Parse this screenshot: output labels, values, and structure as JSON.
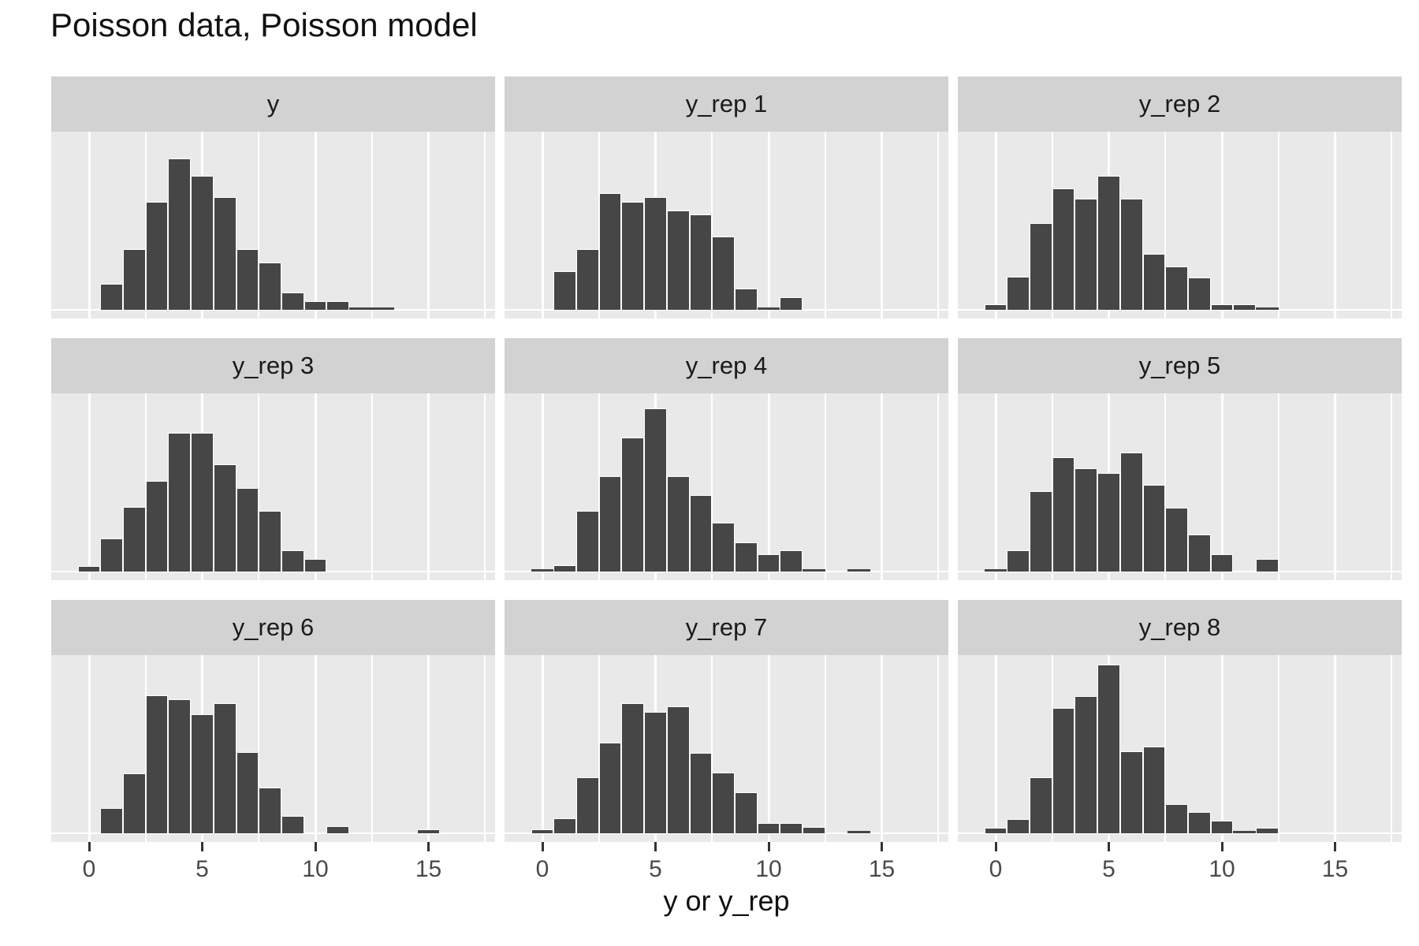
{
  "title": "Poisson data, Poisson model",
  "x_axis": {
    "label": "y or y_rep",
    "tick_labels": [
      "0",
      "5",
      "10",
      "15"
    ],
    "tick_values": [
      0,
      5,
      10,
      15
    ]
  },
  "colors": {
    "bar_fill": "#464646",
    "bar_stroke": "#ffffff",
    "panel_bg": "#e9e9e9",
    "strip_bg": "#d2d2d2",
    "gridline": "#ffffff",
    "tick_label": "#4a4a4a",
    "text": "#111111"
  },
  "chart_data": {
    "type": "bar",
    "subtype": "faceted-histograms",
    "title": "Poisson data, Poisson model",
    "xlabel": "y or y_rep",
    "ylabel": "",
    "legend": "none",
    "grid": "white-on-gray",
    "x_ticks": [
      0,
      5,
      10,
      15
    ],
    "x_minor_gridlines": [
      2.5,
      7.5,
      12.5,
      17.5
    ],
    "x_range": [
      -1.7,
      17.9
    ],
    "y_shared_scale": true,
    "y_max_count": 19.5,
    "facet_grid": [
      3,
      3
    ],
    "facets": [
      {
        "label": "y",
        "x_start": 1,
        "counts": [
          3,
          7,
          12.5,
          17.5,
          15.5,
          13,
          7,
          5.5,
          2,
          1,
          1,
          0.2,
          0.2
        ]
      },
      {
        "label": "y_rep 1",
        "x_start": 1,
        "counts": [
          4.5,
          7,
          13.5,
          12.5,
          13,
          11.5,
          11,
          8.5,
          2.5,
          0.2,
          1.5
        ]
      },
      {
        "label": "y_rep 2",
        "x_start": 0,
        "counts": [
          0.6,
          3.8,
          10,
          14,
          12.8,
          15.5,
          12.8,
          6.5,
          5,
          3.7,
          0.6,
          0.6,
          0.2
        ]
      },
      {
        "label": "y_rep 3",
        "x_start": 0,
        "counts": [
          0.6,
          3.8,
          7.5,
          10.5,
          16,
          16,
          12.4,
          9.6,
          7,
          2.5,
          1.5
        ]
      },
      {
        "label": "y_rep 4",
        "x_start": 0,
        "counts": [
          0.2,
          0.7,
          7,
          11,
          15.5,
          18.8,
          11,
          8.8,
          5.6,
          3.4,
          2,
          2.5,
          0.2,
          0,
          0.2
        ]
      },
      {
        "label": "y_rep 5",
        "x_start": 0,
        "counts": [
          0.2,
          2.5,
          9.3,
          13.2,
          11.9,
          11.4,
          13.7,
          10,
          7.4,
          4.3,
          2,
          0,
          1.5
        ]
      },
      {
        "label": "y_rep 6",
        "x_start": 1,
        "counts": [
          2.9,
          6.9,
          15.9,
          15.5,
          13.7,
          15,
          9.4,
          5.3,
          2,
          0,
          0.8,
          0,
          0,
          0,
          0.5
        ]
      },
      {
        "label": "y_rep 7",
        "x_start": 0,
        "counts": [
          0.5,
          1.7,
          6.5,
          10.5,
          15,
          14,
          14.6,
          9.3,
          7,
          4.7,
          1.2,
          1.2,
          0.7,
          0,
          0.2
        ]
      },
      {
        "label": "y_rep 8",
        "x_start": 0,
        "counts": [
          0.6,
          1.6,
          6.5,
          14.5,
          15.8,
          19.5,
          9.5,
          10,
          3.4,
          2.5,
          1.5,
          0.2,
          0.6
        ]
      }
    ]
  }
}
